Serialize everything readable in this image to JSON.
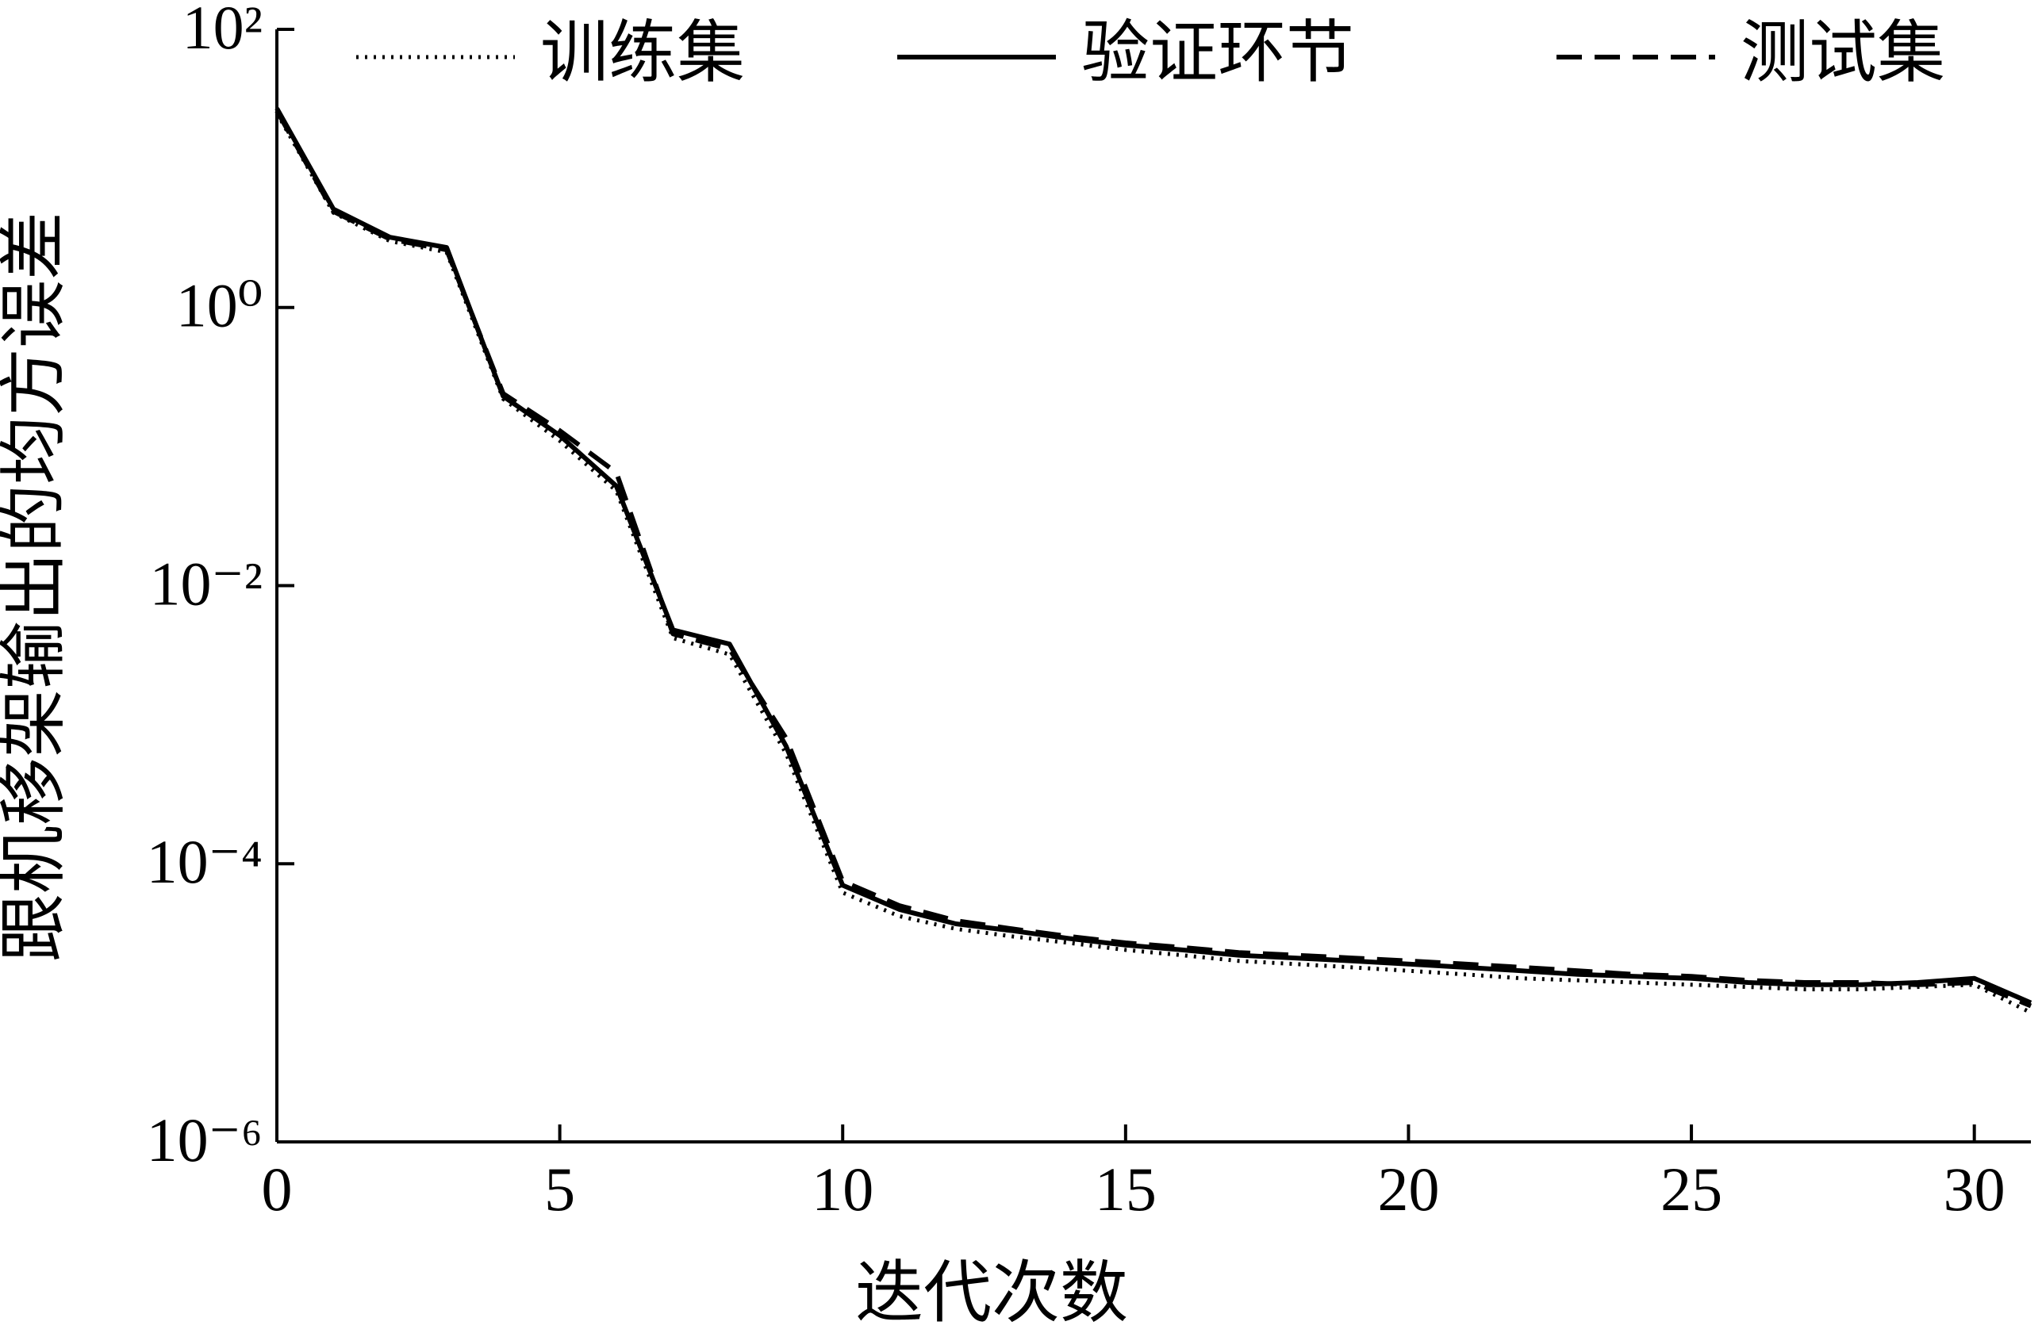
{
  "chart_data": {
    "type": "line",
    "x_label": "迭代次数",
    "y_label": "跟机移架输出的均方误差",
    "x": [
      0,
      1,
      2,
      3,
      4,
      5,
      6,
      7,
      8,
      9,
      10,
      11,
      12,
      13,
      14,
      15,
      16,
      17,
      18,
      19,
      20,
      21,
      22,
      23,
      24,
      25,
      26,
      27,
      28,
      29,
      30,
      31
    ],
    "series": [
      {
        "name": "训练集",
        "color": "#000000",
        "style": "dotted",
        "values": [
          25,
          4.8,
          3.0,
          2.5,
          0.22,
          0.11,
          0.048,
          0.0042,
          0.0032,
          0.00062,
          6.2e-05,
          4.2e-05,
          3.4e-05,
          3e-05,
          2.7e-05,
          2.4e-05,
          2.2e-05,
          2e-05,
          1.9e-05,
          1.8e-05,
          1.7e-05,
          1.6e-05,
          1.5e-05,
          1.45e-05,
          1.4e-05,
          1.35e-05,
          1.3e-05,
          1.25e-05,
          1.25e-05,
          1.3e-05,
          1.35e-05,
          8.5e-06
        ]
      },
      {
        "name": "验证环节",
        "color": "#000000",
        "style": "solid",
        "values": [
          27,
          5.1,
          3.2,
          2.7,
          0.23,
          0.12,
          0.052,
          0.0048,
          0.0038,
          0.0007,
          7e-05,
          4.7e-05,
          3.7e-05,
          3.3e-05,
          2.9e-05,
          2.6e-05,
          2.4e-05,
          2.2e-05,
          2.1e-05,
          2e-05,
          1.9e-05,
          1.8e-05,
          1.7e-05,
          1.6e-05,
          1.55e-05,
          1.5e-05,
          1.4e-05,
          1.35e-05,
          1.35e-05,
          1.4e-05,
          1.5e-05,
          1e-05
        ]
      },
      {
        "name": "测试集",
        "color": "#000000",
        "style": "dashed",
        "values": [
          26,
          4.9,
          3.1,
          2.6,
          0.24,
          0.13,
          0.065,
          0.0045,
          0.0035,
          0.0008,
          7.5e-05,
          5e-05,
          3.9e-05,
          3.4e-05,
          3e-05,
          2.7e-05,
          2.5e-05,
          2.3e-05,
          2.2e-05,
          2.1e-05,
          2e-05,
          1.9e-05,
          1.8e-05,
          1.7e-05,
          1.6e-05,
          1.55e-05,
          1.45e-05,
          1.4e-05,
          1.4e-05,
          1.35e-05,
          1.4e-05,
          9.5e-06
        ]
      }
    ],
    "xlim": [
      0,
      31
    ],
    "xticks": [
      0,
      5,
      10,
      15,
      20,
      25,
      30
    ],
    "ylim": [
      1e-06,
      100
    ],
    "yticks": [
      {
        "value": 1e-06,
        "label": "10⁻⁶"
      },
      {
        "value": 0.0001,
        "label": "10⁻⁴"
      },
      {
        "value": 0.01,
        "label": "10⁻²"
      },
      {
        "value": 1,
        "label": "10⁰"
      },
      {
        "value": 100,
        "label": "10²"
      }
    ],
    "yscale": "log",
    "grid": false,
    "legend": "top"
  }
}
